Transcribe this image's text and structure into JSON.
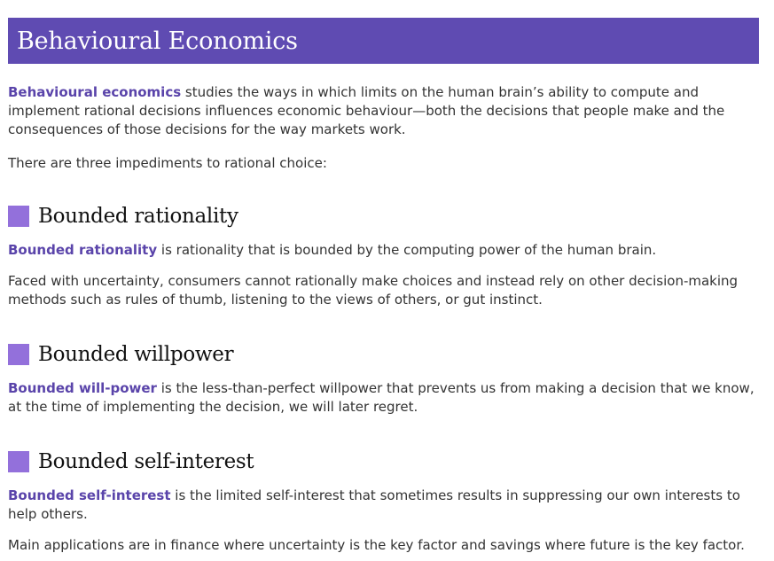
{
  "header": {
    "title": "Behavioural Economics"
  },
  "intro": {
    "term": "Behavioural economics",
    "text": " studies the ways in which limits on the human brain’s ability to compute and implement rational decisions influences economic behaviour—both the decisions that people make and the consequences of those decisions for the way markets work."
  },
  "impediments_text": "There are three impediments to rational choice:",
  "sections": [
    {
      "heading": "Bounded rationality",
      "term": "Bounded rationality",
      "text": " is rationality that is bounded by the computing power of the human brain.",
      "extra": "Faced with uncertainty, consumers cannot rationally make choices and instead rely on other decision-making methods such as rules of thumb, listening to the views of others, or gut instinct."
    },
    {
      "heading": "Bounded willpower",
      "term": "Bounded will-power",
      "text": " is the less-than-perfect willpower that prevents us from making a decision that we know, at the time of implementing the decision, we will later regret."
    },
    {
      "heading": "Bounded self-interest",
      "term": "Bounded self-interest",
      "text": " is the limited self-interest that sometimes results in suppressing our own interests to help others.",
      "extra": "Main applications are in finance where uncertainty is the key factor and savings where future is the key factor."
    }
  ],
  "colors": {
    "title_bar": "#5f4bb2",
    "term": "#5a44aa",
    "heading_square": "#9370db"
  }
}
